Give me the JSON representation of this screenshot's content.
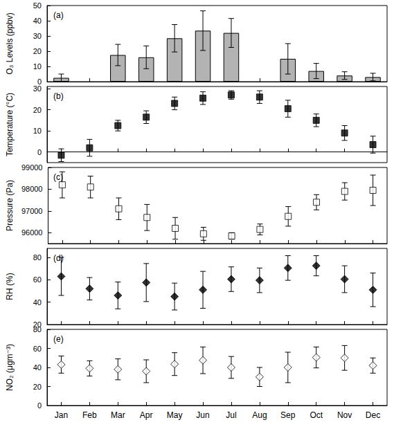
{
  "chart_data": [
    {
      "type": "bar",
      "title": "(a)",
      "ylabel": "O₃ Levels (ppbv)",
      "categories": [
        "Jan",
        "Feb",
        "Mar",
        "Apr",
        "May",
        "Jun",
        "Jul",
        "Aug",
        "Sep",
        "Oct",
        "Nov",
        "Dec"
      ],
      "values": [
        2.5,
        null,
        17.5,
        16,
        28.5,
        33.5,
        32,
        null,
        15,
        7,
        4,
        3
      ],
      "errors": [
        2.5,
        null,
        7,
        7.5,
        9,
        13,
        9.5,
        null,
        10,
        5,
        2.5,
        2.5
      ],
      "color": "#b3b3b3",
      "ylim": [
        0,
        50
      ],
      "yticks": [
        0,
        10,
        20,
        30,
        40,
        50
      ],
      "grid": false,
      "tick_labels": "y"
    },
    {
      "type": "scatter",
      "title": "(b)",
      "ylabel": "Temperature (°C)",
      "categories": [
        "Jan",
        "Feb",
        "Mar",
        "Apr",
        "May",
        "Jun",
        "Jul",
        "Aug",
        "Sep",
        "Oct",
        "Nov",
        "Dec"
      ],
      "values": [
        -1.5,
        2,
        12.5,
        16.5,
        23,
        25.5,
        27,
        26,
        20.5,
        15,
        9,
        3.5
      ],
      "errors": [
        3,
        4,
        2.5,
        3,
        3,
        3,
        2,
        3,
        4,
        3,
        3.5,
        4
      ],
      "color": "#000000",
      "marker": "square",
      "ylim": [
        -5,
        31
      ],
      "yticks": [
        0,
        10,
        20,
        30
      ],
      "grid": false,
      "tick_labels": "y"
    },
    {
      "type": "scatter",
      "title": "(c)",
      "ylabel": "Pressure (Pa)",
      "categories": [
        "Jan",
        "Feb",
        "Mar",
        "Apr",
        "May",
        "Jun",
        "Jul",
        "Aug",
        "Sep",
        "Oct",
        "Nov",
        "Dec"
      ],
      "values": [
        98200,
        98100,
        97100,
        96700,
        96200,
        95950,
        95850,
        96150,
        96750,
        97400,
        97900,
        97950
      ],
      "errors": [
        600,
        500,
        500,
        600,
        500,
        300,
        150,
        250,
        450,
        350,
        400,
        700
      ],
      "color": "#000000",
      "marker": "square-open",
      "ylim": [
        95500,
        99000
      ],
      "yticks": [
        96000,
        97000,
        98000,
        99000
      ],
      "grid": false,
      "tick_labels": "y"
    },
    {
      "type": "scatter",
      "title": "(d)",
      "ylabel": "RH (%)",
      "categories": [
        "Jan",
        "Feb",
        "Mar",
        "Apr",
        "May",
        "Jun",
        "Jul",
        "Aug",
        "Sep",
        "Oct",
        "Nov",
        "Dec"
      ],
      "values": [
        63,
        52,
        46,
        57.5,
        45,
        51,
        60.5,
        59.5,
        70.5,
        72.5,
        60.5,
        51
      ],
      "errors": [
        17,
        10,
        12,
        17,
        12,
        16.5,
        11,
        11,
        11,
        9,
        12,
        15
      ],
      "color": "#000000",
      "marker": "diamond",
      "ylim": [
        20,
        88
      ],
      "yticks": [
        20,
        40,
        60,
        80
      ],
      "grid": false,
      "tick_labels": "y"
    },
    {
      "type": "scatter",
      "title": "(e)",
      "ylabel": "NO₂ (μgm⁻³)",
      "categories": [
        "Jan",
        "Feb",
        "Mar",
        "Apr",
        "May",
        "Jun",
        "Jul",
        "Aug",
        "Sep",
        "Oct",
        "Nov",
        "Dec"
      ],
      "values": [
        43,
        39,
        38,
        36,
        43.5,
        47.5,
        40,
        30,
        40,
        50.5,
        50,
        42
      ],
      "errors": [
        9,
        8,
        11,
        12,
        12,
        14,
        11.5,
        10,
        16,
        11,
        13,
        8
      ],
      "color": "#000000",
      "marker": "diamond-open",
      "ylim": [
        0,
        80
      ],
      "yticks": [
        0,
        20,
        40,
        60,
        80
      ],
      "grid": false
    }
  ]
}
